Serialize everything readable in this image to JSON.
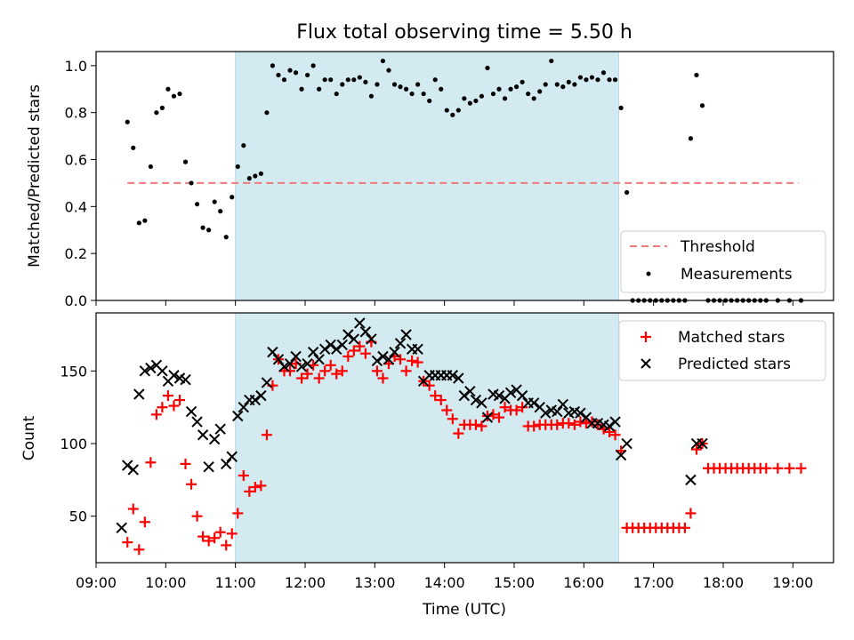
{
  "chart_data": [
    {
      "type": "scatter",
      "title": "Flux total observing time = 5.50 h",
      "ylabel": "Matched/Predicted stars",
      "xlabel": "",
      "ylim": [
        0,
        1.06
      ],
      "yticks": [
        "0.0",
        "0.2",
        "0.4",
        "0.6",
        "0.8",
        "1.0"
      ],
      "ytick_values": [
        0,
        0.2,
        0.4,
        0.6,
        0.8,
        1.0
      ],
      "legend_position": "lower-right",
      "shaded_interval": [
        "11:00",
        "16:30"
      ],
      "shade_color": "#d4eaf1",
      "threshold": {
        "name": "Threshold",
        "value": 0.5,
        "x_start": "09:27",
        "x_end": "19:05",
        "color": "#f07a7a"
      },
      "series": [
        {
          "name": "Measurements",
          "color": "#000000",
          "x": [
            "09:27",
            "09:32",
            "09:37",
            "09:42",
            "09:47",
            "09:52",
            "09:57",
            "10:02",
            "10:07",
            "10:12",
            "10:17",
            "10:22",
            "10:27",
            "10:32",
            "10:37",
            "10:42",
            "10:47",
            "10:52",
            "10:57",
            "11:02",
            "11:07",
            "11:12",
            "11:17",
            "11:22",
            "11:27",
            "11:32",
            "11:37",
            "11:42",
            "11:47",
            "11:52",
            "11:57",
            "12:02",
            "12:07",
            "12:12",
            "12:17",
            "12:22",
            "12:27",
            "12:32",
            "12:37",
            "12:42",
            "12:47",
            "12:52",
            "12:57",
            "13:02",
            "13:07",
            "13:12",
            "13:17",
            "13:22",
            "13:27",
            "13:32",
            "13:37",
            "13:42",
            "13:47",
            "13:52",
            "13:57",
            "14:02",
            "14:07",
            "14:12",
            "14:17",
            "14:22",
            "14:27",
            "14:32",
            "14:37",
            "14:42",
            "14:47",
            "14:52",
            "14:57",
            "15:02",
            "15:07",
            "15:12",
            "15:17",
            "15:22",
            "15:27",
            "15:32",
            "15:37",
            "15:42",
            "15:47",
            "15:52",
            "15:57",
            "16:02",
            "16:07",
            "16:12",
            "16:17",
            "16:22",
            "16:27",
            "16:32",
            "16:37",
            "16:42",
            "16:47",
            "16:52",
            "16:57",
            "17:02",
            "17:07",
            "17:12",
            "17:17",
            "17:22",
            "17:27",
            "17:32",
            "17:37",
            "17:42",
            "17:47",
            "17:52",
            "17:57",
            "18:02",
            "18:07",
            "18:12",
            "18:17",
            "18:22",
            "18:27",
            "18:32",
            "18:37",
            "18:47",
            "18:57",
            "19:07"
          ],
          "y": [
            0.76,
            0.65,
            0.33,
            0.34,
            0.57,
            0.8,
            0.82,
            0.9,
            0.87,
            0.88,
            0.59,
            0.5,
            0.41,
            0.31,
            0.3,
            0.42,
            0.38,
            0.27,
            0.44,
            0.57,
            0.66,
            0.52,
            0.53,
            0.54,
            0.8,
            1.0,
            0.96,
            0.94,
            0.98,
            0.97,
            0.9,
            0.96,
            1.0,
            0.9,
            0.94,
            0.94,
            0.88,
            0.92,
            0.94,
            0.94,
            0.95,
            0.93,
            0.87,
            0.92,
            1.02,
            0.98,
            0.92,
            0.91,
            0.9,
            0.88,
            0.92,
            0.88,
            0.85,
            0.94,
            0.9,
            0.81,
            0.79,
            0.81,
            0.86,
            0.84,
            0.85,
            0.87,
            0.99,
            0.88,
            0.9,
            0.86,
            0.9,
            0.91,
            0.93,
            0.88,
            0.86,
            0.89,
            0.92,
            1.02,
            0.92,
            0.91,
            0.93,
            0.92,
            0.95,
            0.94,
            0.95,
            0.94,
            0.97,
            0.94,
            0.94,
            0.82,
            0.46,
            0,
            0,
            0,
            0,
            0,
            0,
            0,
            0,
            0,
            0,
            0.69,
            0.96,
            0.83,
            0,
            0,
            0,
            0,
            0,
            0,
            0,
            0,
            0,
            0,
            0,
            0,
            0,
            0
          ]
        }
      ]
    },
    {
      "type": "scatter",
      "title": "",
      "xlabel": "Time (UTC)",
      "ylabel": "Count",
      "xlim": [
        "09:00",
        "19:35"
      ],
      "ylim": [
        18,
        190
      ],
      "xticks": [
        "09:00",
        "10:00",
        "11:00",
        "12:00",
        "13:00",
        "14:00",
        "15:00",
        "16:00",
        "17:00",
        "18:00",
        "19:00"
      ],
      "yticks": [
        "50",
        "100",
        "150"
      ],
      "ytick_values": [
        50,
        100,
        150
      ],
      "legend_position": "upper-right",
      "shaded_interval": [
        "11:00",
        "16:30"
      ],
      "series": [
        {
          "name": "Matched stars",
          "color": "#ff0000",
          "marker": "+",
          "x": [
            "09:27",
            "09:32",
            "09:37",
            "09:42",
            "09:47",
            "09:52",
            "09:57",
            "10:02",
            "10:07",
            "10:12",
            "10:17",
            "10:22",
            "10:27",
            "10:32",
            "10:37",
            "10:42",
            "10:47",
            "10:52",
            "10:57",
            "11:02",
            "11:07",
            "11:12",
            "11:17",
            "11:22",
            "11:27",
            "11:32",
            "11:37",
            "11:42",
            "11:47",
            "11:52",
            "11:57",
            "12:02",
            "12:07",
            "12:12",
            "12:17",
            "12:22",
            "12:27",
            "12:32",
            "12:37",
            "12:42",
            "12:47",
            "12:52",
            "12:57",
            "13:02",
            "13:07",
            "13:12",
            "13:17",
            "13:22",
            "13:27",
            "13:32",
            "13:37",
            "13:42",
            "13:47",
            "13:52",
            "13:57",
            "14:02",
            "14:07",
            "14:12",
            "14:17",
            "14:22",
            "14:27",
            "14:32",
            "14:37",
            "14:42",
            "14:47",
            "14:52",
            "14:57",
            "15:02",
            "15:07",
            "15:12",
            "15:17",
            "15:22",
            "15:27",
            "15:32",
            "15:37",
            "15:42",
            "15:47",
            "15:52",
            "15:57",
            "16:02",
            "16:07",
            "16:12",
            "16:17",
            "16:22",
            "16:27",
            "16:32",
            "16:37",
            "16:42",
            "16:47",
            "16:52",
            "16:57",
            "17:02",
            "17:07",
            "17:12",
            "17:17",
            "17:22",
            "17:27",
            "17:32",
            "17:37",
            "17:42",
            "17:47",
            "17:52",
            "17:57",
            "18:02",
            "18:07",
            "18:12",
            "18:17",
            "18:22",
            "18:27",
            "18:32",
            "18:37",
            "18:47",
            "18:57",
            "19:07"
          ],
          "y": [
            32,
            55,
            27,
            46,
            87,
            120,
            125,
            133,
            126,
            130,
            86,
            72,
            50,
            36,
            33,
            35,
            39,
            30,
            38,
            52,
            78,
            67,
            70,
            71,
            106,
            140,
            158,
            150,
            150,
            155,
            145,
            148,
            154,
            145,
            150,
            154,
            148,
            150,
            160,
            164,
            167,
            162,
            170,
            150,
            145,
            155,
            160,
            158,
            150,
            157,
            156,
            143,
            140,
            133,
            130,
            123,
            117,
            107,
            113,
            113,
            113,
            112,
            119,
            120,
            118,
            125,
            123,
            123,
            125,
            112,
            112,
            113,
            113,
            113,
            113,
            114,
            114,
            113,
            115,
            114,
            115,
            113,
            110,
            108,
            106,
            95,
            42,
            42,
            42,
            42,
            42,
            42,
            42,
            42,
            42,
            42,
            42,
            52,
            96,
            100,
            83,
            83,
            83,
            83,
            83,
            83,
            83,
            83,
            83,
            83,
            83,
            83,
            83,
            83
          ]
        },
        {
          "name": "Predicted stars",
          "color": "#000000",
          "marker": "x",
          "x": [
            "09:22",
            "09:27",
            "09:32",
            "09:37",
            "09:42",
            "09:47",
            "09:52",
            "09:57",
            "10:02",
            "10:07",
            "10:12",
            "10:17",
            "10:22",
            "10:27",
            "10:32",
            "10:37",
            "10:42",
            "10:47",
            "10:52",
            "10:57",
            "11:02",
            "11:07",
            "11:12",
            "11:17",
            "11:22",
            "11:27",
            "11:32",
            "11:37",
            "11:42",
            "11:47",
            "11:52",
            "11:57",
            "12:02",
            "12:07",
            "12:12",
            "12:17",
            "12:22",
            "12:27",
            "12:32",
            "12:37",
            "12:42",
            "12:47",
            "12:52",
            "12:57",
            "13:02",
            "13:07",
            "13:12",
            "13:17",
            "13:22",
            "13:27",
            "13:32",
            "13:37",
            "13:42",
            "13:47",
            "13:52",
            "13:57",
            "14:02",
            "14:07",
            "14:12",
            "14:17",
            "14:22",
            "14:27",
            "14:32",
            "14:37",
            "14:42",
            "14:47",
            "14:52",
            "14:57",
            "15:02",
            "15:07",
            "15:12",
            "15:17",
            "15:22",
            "15:27",
            "15:32",
            "15:37",
            "15:42",
            "15:47",
            "15:52",
            "15:57",
            "16:02",
            "16:07",
            "16:12",
            "16:17",
            "16:22",
            "16:27",
            "16:32",
            "16:37",
            "17:32",
            "17:37",
            "17:42"
          ],
          "y": [
            42,
            85,
            82,
            134,
            150,
            152,
            154,
            150,
            143,
            147,
            145,
            144,
            122,
            115,
            106,
            84,
            103,
            110,
            86,
            91,
            119,
            125,
            130,
            130,
            133,
            142,
            163,
            158,
            153,
            155,
            160,
            153,
            155,
            163,
            158,
            165,
            168,
            165,
            168,
            175,
            172,
            183,
            177,
            172,
            157,
            160,
            158,
            163,
            169,
            175,
            165,
            165,
            143,
            147,
            147,
            147,
            147,
            147,
            145,
            133,
            136,
            130,
            128,
            118,
            134,
            133,
            131,
            135,
            137,
            133,
            128,
            128,
            125,
            121,
            123,
            122,
            127,
            121,
            122,
            121,
            118,
            114,
            114,
            113,
            112,
            115,
            92,
            100,
            75,
            100,
            100
          ]
        }
      ]
    }
  ]
}
